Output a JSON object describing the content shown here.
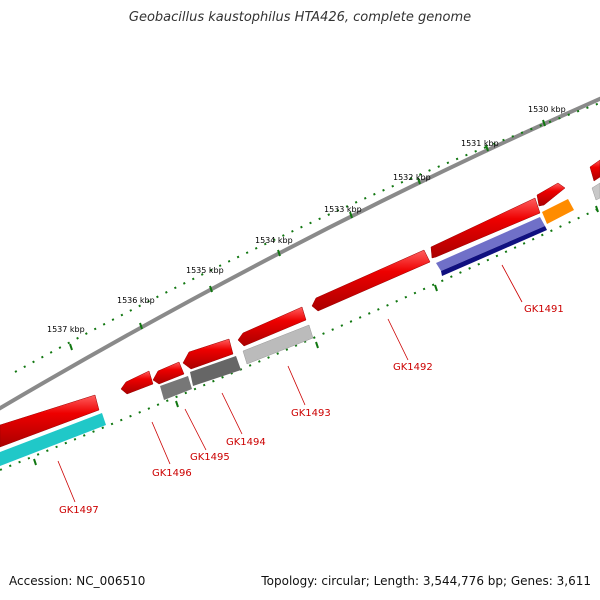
{
  "title": "Geobacillus kaustophilus HTA426, complete genome",
  "footer": {
    "accession": "Accession: NC_006510",
    "info": "Topology: circular; Length: 3,544,776 bp; Genes: 3,611"
  },
  "scale_labels": [
    "1530 kbp",
    "1531 kbp",
    "1532 kbp",
    "1533 kbp",
    "1534 kbp",
    "1535 kbp",
    "1536 kbp",
    "1537 kbp"
  ],
  "gene_labels": [
    "GK1491",
    "GK1492",
    "GK1493",
    "GK1494",
    "GK1495",
    "GK1496",
    "GK1497"
  ],
  "colors": {
    "backbone": "#8a8a8a",
    "cds": "#e00000",
    "gray_light": "#bbbbbb",
    "gray_dark": "#666666",
    "navy": "#101080",
    "purple": "#7070c8",
    "orange": "#ff8c00",
    "cyan": "#20c8c8",
    "tick": "#117711",
    "label": "#cc0000"
  }
}
